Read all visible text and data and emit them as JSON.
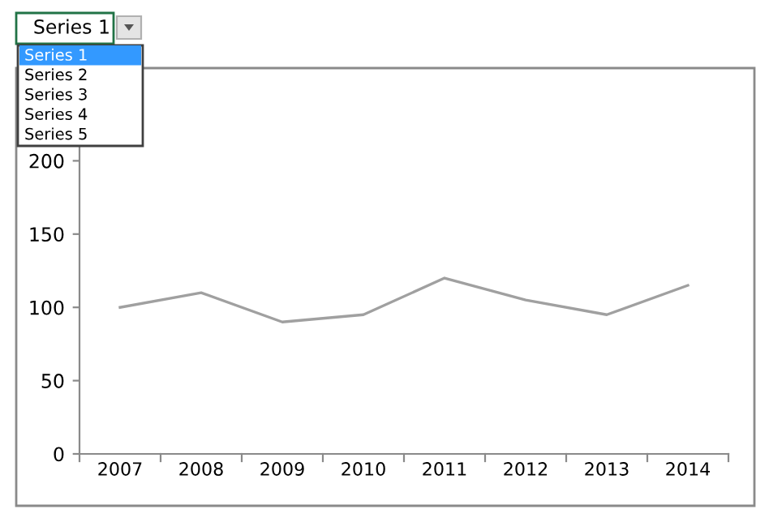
{
  "chart_data": {
    "type": "line",
    "categories": [
      "2007",
      "2008",
      "2009",
      "2010",
      "2011",
      "2012",
      "2013",
      "2014"
    ],
    "series": [
      {
        "color": "#a0a0a0",
        "values": [
          100,
          110,
          90,
          95,
          120,
          105,
          95,
          115
        ]
      }
    ],
    "ylim": [
      0,
      250
    ],
    "yticks": [
      0,
      50,
      100,
      150,
      200
    ],
    "grid": false,
    "marker": "none",
    "line_style": "solid",
    "annotations": [
      "Series 1",
      "Series 1",
      "Series 2",
      "Series 3",
      "Series 4",
      "Series 5"
    ]
  }
}
